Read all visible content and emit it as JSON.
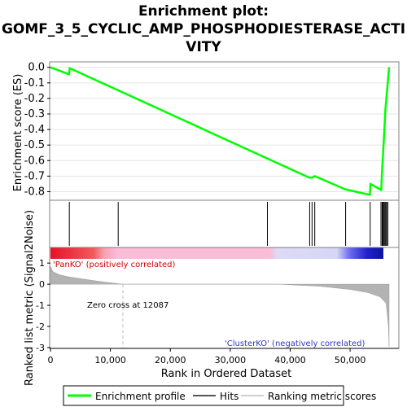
{
  "chart_data": {
    "type": "line",
    "title_lines": [
      "Enrichment plot:",
      "GOMF_3_5_CYCLIC_AMP_PHOSPHODIESTERASE_ACTI",
      "VITY"
    ],
    "es_panel": {
      "ylabel": "Enrichment score (ES)",
      "ylim": [
        -0.85,
        0.03
      ],
      "yticks": [
        "0.0",
        "-0.1",
        "-0.2",
        "-0.3",
        "-0.4",
        "-0.5",
        "-0.6",
        "-0.7",
        "-0.8"
      ],
      "ytick_values": [
        0.0,
        -0.1,
        -0.2,
        -0.3,
        -0.4,
        -0.5,
        -0.6,
        -0.7,
        -0.8
      ],
      "grid": true,
      "series": [
        {
          "name": "Enrichment profile",
          "color": "#00ff00",
          "x": [
            0,
            3100,
            3200,
            43200,
            43600,
            44100,
            49200,
            53300,
            53400,
            55200,
            55300,
            55600,
            55900,
            56200,
            56500
          ],
          "y": [
            0.0,
            -0.045,
            -0.005,
            -0.71,
            -0.71,
            -0.7,
            -0.785,
            -0.82,
            -0.75,
            -0.79,
            -0.69,
            -0.49,
            -0.27,
            -0.14,
            0.0
          ]
        }
      ]
    },
    "hits": {
      "name": "Hits",
      "x": [
        3150,
        11300,
        36200,
        43250,
        43650,
        44100,
        49250,
        53350,
        55150,
        55350,
        55500,
        55650,
        55800,
        55950,
        56100,
        56300
      ]
    },
    "metric_panel": {
      "ylabel": "Ranked list metric (Signal2Noise)",
      "ylim": [
        -3,
        1.2
      ],
      "yticks": [
        "1",
        "0",
        "-1",
        "-2",
        "-3"
      ],
      "ytick_values": [
        1,
        0,
        -1,
        -2,
        -3
      ],
      "series_name": "Ranking metric scores",
      "profile_x": [
        0,
        400,
        1500,
        3000,
        6000,
        9000,
        12087,
        38000,
        45000,
        50000,
        53000,
        55000,
        56000,
        56400,
        56500
      ],
      "profile_y": [
        0.85,
        0.6,
        0.45,
        0.35,
        0.22,
        0.1,
        0.0,
        0.0,
        -0.1,
        -0.25,
        -0.4,
        -0.6,
        -0.9,
        -2.0,
        -2.95
      ],
      "zero_cross": 12087,
      "zero_cross_label": "Zero cross at 12087",
      "pos_label": "'PanKO' (positively correlated)",
      "neg_label": "'ClusterKO' (negatively correlated)"
    },
    "xaxis": {
      "label": "Rank in Ordered Dataset",
      "xlim": [
        0,
        58000
      ],
      "xticks": [
        "0",
        "10,000",
        "20,000",
        "30,000",
        "40,000",
        "50,000"
      ],
      "xtick_values": [
        0,
        10000,
        20000,
        30000,
        40000,
        50000
      ]
    },
    "legend": {
      "position": "bottom",
      "entries": [
        "Enrichment profile",
        "Hits",
        "Ranking metric scores"
      ]
    }
  }
}
